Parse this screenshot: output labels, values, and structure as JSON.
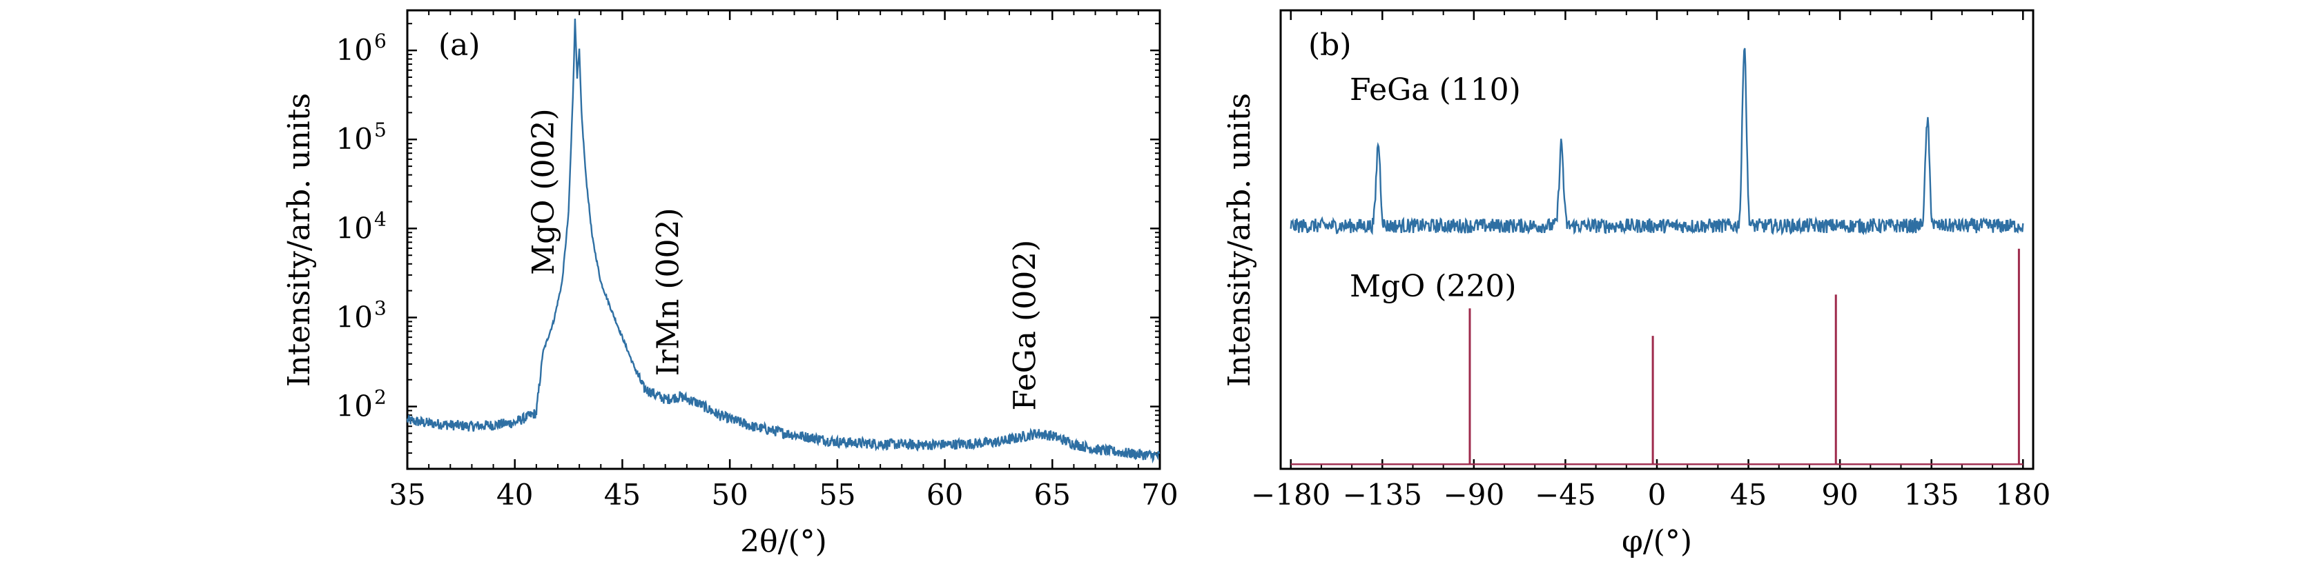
{
  "chart_data": [
    {
      "type": "line",
      "panel_label": "(a)",
      "xlabel": "2θ/(°)",
      "ylabel": "Intensity/arb. units",
      "xlim": [
        35,
        70
      ],
      "ylim_log10": [
        1.3,
        6.45
      ],
      "yscale": "log",
      "grid": false,
      "x_ticks": [
        35,
        40,
        45,
        50,
        55,
        60,
        65,
        70
      ],
      "x_tick_labels": [
        "35",
        "40",
        "45",
        "50",
        "55",
        "60",
        "65",
        "70"
      ],
      "y_ticks": [
        {
          "base": "10",
          "exp": "2",
          "log10": 2
        },
        {
          "base": "10",
          "exp": "3",
          "log10": 3
        },
        {
          "base": "10",
          "exp": "4",
          "log10": 4
        },
        {
          "base": "10",
          "exp": "5",
          "log10": 5
        },
        {
          "base": "10",
          "exp": "6",
          "log10": 6
        }
      ],
      "series": [
        {
          "color": "#2e6fa3",
          "points": [
            [
              35,
              70
            ],
            [
              36,
              65
            ],
            [
              37,
              62
            ],
            [
              38,
              60
            ],
            [
              39,
              62
            ],
            [
              40,
              66
            ],
            [
              41,
              85
            ],
            [
              41.3,
              400
            ],
            [
              41.8,
              900
            ],
            [
              42.2,
              2500
            ],
            [
              42.5,
              15000
            ],
            [
              42.7,
              300000
            ],
            [
              42.8,
              2200000
            ],
            [
              42.9,
              500000
            ],
            [
              43.0,
              1000000
            ],
            [
              43.1,
              200000
            ],
            [
              43.3,
              40000
            ],
            [
              43.6,
              8000
            ],
            [
              44.0,
              2500
            ],
            [
              44.5,
              1200
            ],
            [
              45,
              600
            ],
            [
              45.5,
              300
            ],
            [
              46,
              160
            ],
            [
              47,
              120
            ],
            [
              47.7,
              130
            ],
            [
              48.5,
              110
            ],
            [
              49.5,
              80
            ],
            [
              51,
              60
            ],
            [
              53,
              48
            ],
            [
              55,
              40
            ],
            [
              57,
              38
            ],
            [
              59,
              37
            ],
            [
              61,
              38
            ],
            [
              62.5,
              40
            ],
            [
              63.5,
              45
            ],
            [
              64.3,
              50
            ],
            [
              65,
              47
            ],
            [
              66,
              38
            ],
            [
              67,
              33
            ],
            [
              68,
              31
            ],
            [
              69,
              29
            ],
            [
              70,
              28
            ]
          ]
        }
      ],
      "annotations": [
        {
          "text": "MgO (002)",
          "x": 41.8,
          "y": 3000,
          "rotation": -90
        },
        {
          "text": "IrMn (002)",
          "x": 47.6,
          "y": 220,
          "rotation": -90
        },
        {
          "text": "FeGa (002)",
          "x": 64.2,
          "y": 90,
          "rotation": -90
        }
      ]
    },
    {
      "type": "line",
      "panel_label": "(b)",
      "xlabel": "φ/(°)",
      "ylabel": "Intensity/arb. units",
      "xlim": [
        -185,
        185
      ],
      "ylim": [
        0,
        100
      ],
      "yticks_visible": false,
      "grid": false,
      "x_ticks": [
        -180,
        -135,
        -90,
        -45,
        0,
        45,
        90,
        135,
        180
      ],
      "x_tick_labels": [
        "−180",
        "−135",
        "−90",
        "−45",
        "0",
        "45",
        "90",
        "135",
        "180"
      ],
      "series": [
        {
          "name": "FeGa (110)",
          "color": "#2e6fa3",
          "baseline": 53,
          "peaks": [
            {
              "x": -137,
              "y": 71
            },
            {
              "x": -47,
              "y": 71
            },
            {
              "x": 43,
              "y": 93
            },
            {
              "x": 133,
              "y": 76
            }
          ]
        },
        {
          "name": "MgO (220)",
          "color": "#9e2a4c",
          "baseline": 1,
          "peaks": [
            {
              "x": -92,
              "y": 35
            },
            {
              "x": -2,
              "y": 29
            },
            {
              "x": 88,
              "y": 38
            },
            {
              "x": 178,
              "y": 48
            }
          ]
        }
      ]
    }
  ]
}
